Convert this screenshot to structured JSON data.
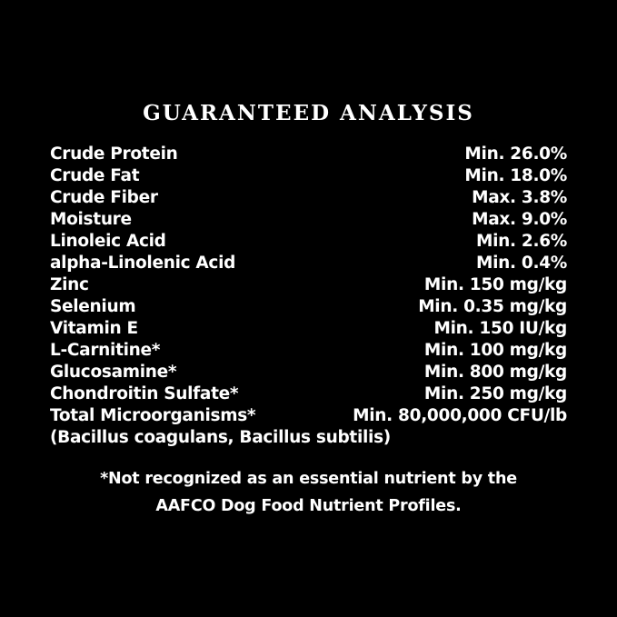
{
  "title": "GUARANTEED ANALYSIS",
  "rows": [
    {
      "label": "Crude Protein",
      "value": "Min. 26.0%"
    },
    {
      "label": "Crude Fat",
      "value": "Min. 18.0%"
    },
    {
      "label": "Crude Fiber",
      "value": "Max. 3.8%"
    },
    {
      "label": "Moisture",
      "value": "Max. 9.0%"
    },
    {
      "label": "Linoleic Acid",
      "value": "Min. 2.6%"
    },
    {
      "label": "alpha-Linolenic Acid",
      "value": "Min. 0.4%"
    },
    {
      "label": "Zinc",
      "value": "Min. 150 mg/kg"
    },
    {
      "label": "Selenium",
      "value": "Min. 0.35 mg/kg"
    },
    {
      "label": "Vitamin E",
      "value": "Min. 150 IU/kg"
    },
    {
      "label": "L-Carnitine*",
      "value": "Min. 100 mg/kg"
    },
    {
      "label": "Glucosamine*",
      "value": "Min. 800 mg/kg"
    },
    {
      "label": "Chondroitin Sulfate*",
      "value": "Min. 250 mg/kg"
    },
    {
      "label": "Total Microorganisms*",
      "value": "Min. 80,000,000 CFU/lb"
    },
    {
      "label": "(Bacillus coagulans, Bacillus subtilis)",
      "value": ""
    }
  ],
  "footnote": {
    "line1": "*Not recognized as an essential nutrient by the",
    "line2": "AAFCO Dog Food Nutrient Profiles."
  }
}
